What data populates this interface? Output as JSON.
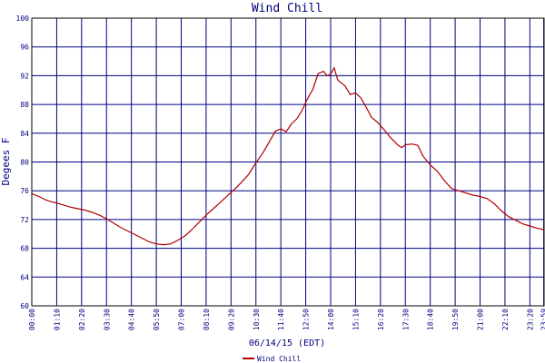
{
  "chart_data": {
    "type": "line",
    "title": "Wind Chill",
    "xlabel": "06/14/15 (EDT)",
    "ylabel": "Degees F",
    "ylim": [
      60,
      100
    ],
    "yticks": [
      60,
      64,
      68,
      72,
      76,
      80,
      84,
      88,
      92,
      96,
      100
    ],
    "xlim": [
      "00:00",
      "24:00"
    ],
    "xtick_labels": [
      "00:00",
      "01:10",
      "02:20",
      "03:30",
      "04:40",
      "05:50",
      "07:00",
      "08:10",
      "09:20",
      "10:30",
      "11:40",
      "12:50",
      "14:00",
      "15:10",
      "16:20",
      "17:30",
      "18:40",
      "19:50",
      "21:00",
      "22:10",
      "23:20",
      "23:59"
    ],
    "grid": true,
    "legend_position": "bottom-left",
    "series": [
      {
        "name": "Wind Chill",
        "color": "#b00000",
        "points": [
          [
            "00:00",
            75.6
          ],
          [
            "00:20",
            75.2
          ],
          [
            "00:40",
            74.7
          ],
          [
            "01:00",
            74.4
          ],
          [
            "01:10",
            74.3
          ],
          [
            "01:30",
            74.0
          ],
          [
            "01:50",
            73.7
          ],
          [
            "02:10",
            73.5
          ],
          [
            "02:30",
            73.3
          ],
          [
            "02:50",
            73.0
          ],
          [
            "03:10",
            72.6
          ],
          [
            "03:30",
            72.1
          ],
          [
            "03:50",
            71.5
          ],
          [
            "04:10",
            70.9
          ],
          [
            "04:30",
            70.4
          ],
          [
            "04:50",
            69.9
          ],
          [
            "05:10",
            69.4
          ],
          [
            "05:30",
            68.9
          ],
          [
            "05:50",
            68.6
          ],
          [
            "06:10",
            68.5
          ],
          [
            "06:30",
            68.6
          ],
          [
            "06:50",
            69.1
          ],
          [
            "07:10",
            69.7
          ],
          [
            "07:30",
            70.6
          ],
          [
            "07:50",
            71.6
          ],
          [
            "08:10",
            72.6
          ],
          [
            "08:30",
            73.5
          ],
          [
            "08:50",
            74.4
          ],
          [
            "09:10",
            75.3
          ],
          [
            "09:30",
            76.2
          ],
          [
            "09:50",
            77.2
          ],
          [
            "10:10",
            78.3
          ],
          [
            "10:30",
            79.9
          ],
          [
            "10:50",
            81.3
          ],
          [
            "11:10",
            83.0
          ],
          [
            "11:25",
            84.3
          ],
          [
            "11:40",
            84.6
          ],
          [
            "11:55",
            84.2
          ],
          [
            "12:10",
            85.3
          ],
          [
            "12:25",
            86.0
          ],
          [
            "12:40",
            87.2
          ],
          [
            "12:55",
            88.8
          ],
          [
            "13:10",
            90.1
          ],
          [
            "13:25",
            92.3
          ],
          [
            "13:40",
            92.6
          ],
          [
            "13:50",
            92.0
          ],
          [
            "14:00",
            92.2
          ],
          [
            "14:10",
            93.1
          ],
          [
            "14:20",
            91.4
          ],
          [
            "14:40",
            90.6
          ],
          [
            "14:55",
            89.4
          ],
          [
            "15:10",
            89.6
          ],
          [
            "15:25",
            88.9
          ],
          [
            "15:40",
            87.6
          ],
          [
            "15:55",
            86.2
          ],
          [
            "16:10",
            85.6
          ],
          [
            "16:30",
            84.5
          ],
          [
            "16:50",
            83.3
          ],
          [
            "17:10",
            82.3
          ],
          [
            "17:20",
            82.0
          ],
          [
            "17:30",
            82.4
          ],
          [
            "17:50",
            82.5
          ],
          [
            "18:05",
            82.3
          ],
          [
            "18:20",
            80.8
          ],
          [
            "18:40",
            79.6
          ],
          [
            "19:00",
            78.7
          ],
          [
            "19:20",
            77.4
          ],
          [
            "19:40",
            76.3
          ],
          [
            "20:00",
            76.0
          ],
          [
            "20:20",
            75.7
          ],
          [
            "20:40",
            75.4
          ],
          [
            "21:00",
            75.2
          ],
          [
            "21:20",
            74.9
          ],
          [
            "21:40",
            74.2
          ],
          [
            "22:00",
            73.2
          ],
          [
            "22:20",
            72.4
          ],
          [
            "22:40",
            71.9
          ],
          [
            "23:00",
            71.4
          ],
          [
            "23:20",
            71.1
          ],
          [
            "23:40",
            70.8
          ],
          [
            "23:59",
            70.6
          ]
        ]
      }
    ]
  }
}
